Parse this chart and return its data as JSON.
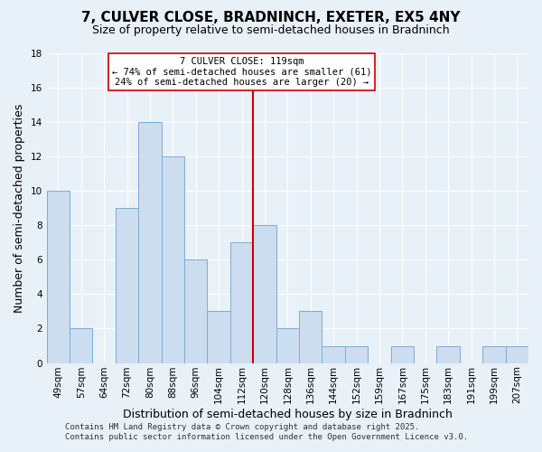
{
  "title": "7, CULVER CLOSE, BRADNINCH, EXETER, EX5 4NY",
  "subtitle": "Size of property relative to semi-detached houses in Bradninch",
  "xlabel": "Distribution of semi-detached houses by size in Bradninch",
  "ylabel": "Number of semi-detached properties",
  "bin_labels": [
    "49sqm",
    "57sqm",
    "64sqm",
    "72sqm",
    "80sqm",
    "88sqm",
    "96sqm",
    "104sqm",
    "112sqm",
    "120sqm",
    "128sqm",
    "136sqm",
    "144sqm",
    "152sqm",
    "159sqm",
    "167sqm",
    "175sqm",
    "183sqm",
    "191sqm",
    "199sqm",
    "207sqm"
  ],
  "counts": [
    10,
    2,
    0,
    9,
    14,
    12,
    6,
    3,
    7,
    8,
    2,
    3,
    1,
    1,
    0,
    1,
    0,
    1,
    0,
    1,
    1
  ],
  "bar_color": "#ccddf0",
  "bar_edge_color": "#7aadd4",
  "vline_bin": 9,
  "vline_color": "#cc0000",
  "annotation_title": "7 CULVER CLOSE: 119sqm",
  "annotation_line1": "← 74% of semi-detached houses are smaller (61)",
  "annotation_line2": "24% of semi-detached houses are larger (20) →",
  "annotation_box_color": "#ffffff",
  "annotation_box_edge": "#cc0000",
  "ylim": [
    0,
    18
  ],
  "yticks": [
    0,
    2,
    4,
    6,
    8,
    10,
    12,
    14,
    16,
    18
  ],
  "background_color": "#e8f0f8",
  "footer1": "Contains HM Land Registry data © Crown copyright and database right 2025.",
  "footer2": "Contains public sector information licensed under the Open Government Licence v3.0.",
  "title_fontsize": 11,
  "subtitle_fontsize": 9,
  "axis_label_fontsize": 9,
  "tick_fontsize": 7.5,
  "footer_fontsize": 6.5,
  "annotation_fontsize": 7.5
}
